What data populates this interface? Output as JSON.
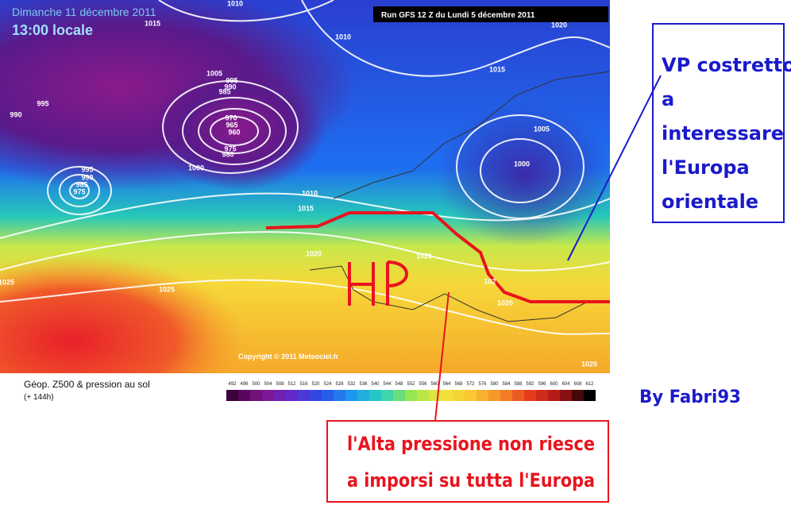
{
  "header": {
    "date": "Dimanche 11 décembre 2011",
    "time": "13:00 locale",
    "run": "Run GFS 12 Z du Lundi 5 décembre 2011"
  },
  "map": {
    "isobar_labels": [
      1010,
      1015,
      1010,
      1020,
      1015,
      1005,
      995,
      990,
      985,
      995,
      990,
      970,
      965,
      960,
      975,
      980,
      1005,
      1000,
      1000,
      995,
      990,
      985,
      975,
      1010,
      1015,
      1020,
      1020,
      1025,
      1025,
      1020,
      1020,
      102
    ],
    "copyright": "Copyright © 2011 Meteociel.fr",
    "high_label": "HP"
  },
  "legend": {
    "title": "Géop. Z500 & pression au sol",
    "lead": "(+ 144h)",
    "scale": [
      492,
      496,
      500,
      504,
      508,
      512,
      516,
      520,
      524,
      528,
      532,
      536,
      540,
      544,
      548,
      552,
      556,
      560,
      564,
      568,
      572,
      576,
      580,
      584,
      588,
      592,
      596,
      600,
      604,
      608,
      612
    ]
  },
  "annotations": {
    "vp_box": [
      "VP costretto",
      "a",
      "interessare",
      "l'Europa",
      "orientale"
    ],
    "author": "By Fabri93",
    "hp_box": [
      "l'Alta pressione non riesce",
      "a imporsi su tutta l'Europa"
    ]
  }
}
